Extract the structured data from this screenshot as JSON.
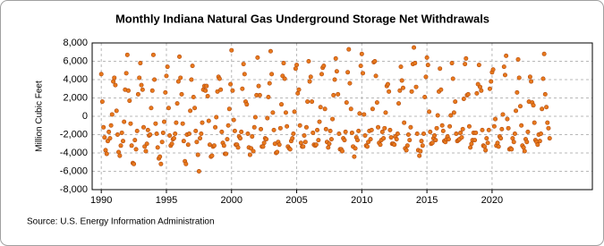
{
  "chart_data": {
    "type": "scatter",
    "title": "Monthly Indiana Natural Gas Underground Storage Net Withdrawals",
    "y_label": "Million Cubic Feet",
    "source": "Source: U.S. Energy Information Administration",
    "color": "#e8791c",
    "grid": true,
    "xlim": [
      1989.3,
      2027.7
    ],
    "xticks": [
      1990,
      1995,
      2000,
      2005,
      2010,
      2015,
      2020
    ],
    "ylim": [
      -8000,
      8000
    ],
    "yticks": [
      {
        "value": -8000,
        "label": "-8,000"
      },
      {
        "value": -6000,
        "label": "-6,000"
      },
      {
        "value": -4000,
        "label": "-4,000"
      },
      {
        "value": -2000,
        "label": "-2,000"
      },
      0,
      {
        "value": 2000,
        "label": "2,000"
      },
      {
        "value": 4000,
        "label": "4,000"
      },
      {
        "value": 6000,
        "label": "6,000"
      },
      {
        "value": 8000,
        "label": "8,000"
      }
    ],
    "x": [
      1990.0,
      1990.08,
      1990.17,
      1990.25,
      1990.33,
      1990.42,
      1990.5,
      1990.58,
      1990.67,
      1990.75,
      1990.83,
      1990.92,
      1991.0,
      1991.08,
      1991.17,
      1991.25,
      1991.33,
      1991.42,
      1991.5,
      1991.58,
      1991.67,
      1991.75,
      1991.83,
      1991.92,
      1992.0,
      1992.08,
      1992.17,
      1992.25,
      1992.33,
      1992.42,
      1992.5,
      1992.58,
      1992.67,
      1992.75,
      1992.83,
      1992.92,
      1993.0,
      1993.08,
      1993.17,
      1993.25,
      1993.33,
      1993.42,
      1993.5,
      1993.58,
      1993.67,
      1993.75,
      1993.83,
      1993.92,
      1994.0,
      1994.08,
      1994.17,
      1994.25,
      1994.33,
      1994.42,
      1994.5,
      1994.58,
      1994.67,
      1994.75,
      1994.83,
      1994.92,
      1995.0,
      1995.08,
      1995.17,
      1995.25,
      1995.33,
      1995.42,
      1995.5,
      1995.58,
      1995.67,
      1995.75,
      1995.83,
      1995.92,
      1996.0,
      1996.08,
      1996.17,
      1996.25,
      1996.33,
      1996.42,
      1996.5,
      1996.58,
      1996.67,
      1996.75,
      1996.83,
      1996.92,
      1997.0,
      1997.08,
      1997.17,
      1997.25,
      1997.33,
      1997.42,
      1997.5,
      1997.58,
      1997.67,
      1997.75,
      1997.83,
      1997.92,
      1998.0,
      1998.08,
      1998.17,
      1998.25,
      1998.33,
      1998.42,
      1998.5,
      1998.58,
      1998.67,
      1998.75,
      1998.83,
      1998.92,
      1999.0,
      1999.08,
      1999.17,
      1999.25,
      1999.33,
      1999.42,
      1999.5,
      1999.58,
      1999.67,
      1999.75,
      1999.83,
      1999.92,
      2000.0,
      2000.08,
      2000.17,
      2000.25,
      2000.33,
      2000.42,
      2000.5,
      2000.58,
      2000.67,
      2000.75,
      2000.83,
      2000.92,
      2001.0,
      2001.08,
      2001.17,
      2001.25,
      2001.33,
      2001.42,
      2001.5,
      2001.58,
      2001.67,
      2001.75,
      2001.83,
      2001.92,
      2002.0,
      2002.08,
      2002.17,
      2002.25,
      2002.33,
      2002.42,
      2002.5,
      2002.58,
      2002.67,
      2002.75,
      2002.83,
      2002.92,
      2003.0,
      2003.08,
      2003.17,
      2003.25,
      2003.33,
      2003.42,
      2003.5,
      2003.58,
      2003.67,
      2003.75,
      2003.83,
      2003.92,
      2004.0,
      2004.08,
      2004.17,
      2004.25,
      2004.33,
      2004.42,
      2004.5,
      2004.58,
      2004.67,
      2004.75,
      2004.83,
      2004.92,
      2005.0,
      2005.08,
      2005.17,
      2005.25,
      2005.33,
      2005.42,
      2005.5,
      2005.58,
      2005.67,
      2005.75,
      2005.83,
      2005.92,
      2006.0,
      2006.08,
      2006.17,
      2006.25,
      2006.33,
      2006.42,
      2006.5,
      2006.58,
      2006.67,
      2006.75,
      2006.83,
      2006.92,
      2007.0,
      2007.08,
      2007.17,
      2007.25,
      2007.33,
      2007.42,
      2007.5,
      2007.58,
      2007.67,
      2007.75,
      2007.83,
      2007.92,
      2008.0,
      2008.08,
      2008.17,
      2008.25,
      2008.33,
      2008.42,
      2008.5,
      2008.58,
      2008.67,
      2008.75,
      2008.83,
      2008.92,
      2009.0,
      2009.08,
      2009.17,
      2009.25,
      2009.33,
      2009.42,
      2009.5,
      2009.58,
      2009.67,
      2009.75,
      2009.83,
      2009.92,
      2010.0,
      2010.08,
      2010.17,
      2010.25,
      2010.33,
      2010.42,
      2010.5,
      2010.58,
      2010.67,
      2010.75,
      2010.83,
      2010.92,
      2011.0,
      2011.08,
      2011.17,
      2011.25,
      2011.33,
      2011.42,
      2011.5,
      2011.58,
      2011.67,
      2011.75,
      2011.83,
      2011.92,
      2012.0,
      2012.08,
      2012.17,
      2012.25,
      2012.33,
      2012.42,
      2012.5,
      2012.58,
      2012.67,
      2012.75,
      2012.83,
      2012.92,
      2013.0,
      2013.08,
      2013.17,
      2013.25,
      2013.33,
      2013.42,
      2013.5,
      2013.58,
      2013.67,
      2013.75,
      2013.83,
      2013.92,
      2014.0,
      2014.08,
      2014.17,
      2014.25,
      2014.33,
      2014.42,
      2014.5,
      2014.58,
      2014.67,
      2014.75,
      2014.83,
      2014.92,
      2015.0,
      2015.08,
      2015.17,
      2015.25,
      2015.33,
      2015.42,
      2015.5,
      2015.58,
      2015.67,
      2015.75,
      2015.83,
      2015.92,
      2016.0,
      2016.08,
      2016.17,
      2016.25,
      2016.33,
      2016.42,
      2016.5,
      2016.58,
      2016.67,
      2016.75,
      2016.83,
      2016.92,
      2017.0,
      2017.08,
      2017.17,
      2017.25,
      2017.33,
      2017.42,
      2017.5,
      2017.58,
      2017.67,
      2017.75,
      2017.83,
      2017.92,
      2018.0,
      2018.08,
      2018.17,
      2018.25,
      2018.33,
      2018.42,
      2018.5,
      2018.58,
      2018.67,
      2018.75,
      2018.83,
      2018.92,
      2019.0,
      2019.08,
      2019.17,
      2019.25,
      2019.33,
      2019.42,
      2019.5,
      2019.58,
      2019.67,
      2019.75,
      2019.83,
      2019.92,
      2020.0,
      2020.08,
      2020.17,
      2020.25,
      2020.33,
      2020.42,
      2020.5,
      2020.58,
      2020.67,
      2020.75,
      2020.83,
      2020.92,
      2021.0,
      2021.08,
      2021.17,
      2021.25,
      2021.33,
      2021.42,
      2021.5,
      2021.58,
      2021.67,
      2021.75,
      2021.83,
      2021.92,
      2022.0,
      2022.08,
      2022.17,
      2022.25,
      2022.33,
      2022.42,
      2022.5,
      2022.58,
      2022.67,
      2022.75,
      2022.83,
      2022.92,
      2023.0,
      2023.08,
      2023.17,
      2023.25,
      2023.33,
      2023.42,
      2023.5,
      2023.58,
      2023.67,
      2023.75,
      2023.83,
      2023.92,
      2024.0,
      2024.08,
      2024.17,
      2024.25,
      2024.33,
      2024.42
    ],
    "values": [
      4600,
      1600,
      -1200,
      -2300,
      -3700,
      -4100,
      -2700,
      -1700,
      -2400,
      -1000,
      200,
      3800,
      4200,
      3400,
      600,
      -2000,
      -3900,
      -4300,
      -3200,
      -1800,
      -2700,
      -600,
      2900,
      4700,
      6700,
      2800,
      1700,
      -800,
      -3200,
      -5100,
      -5200,
      -2600,
      -3600,
      -1600,
      2400,
      4200,
      5800,
      3400,
      2900,
      -1200,
      -3300,
      -3800,
      -3000,
      -1500,
      -2100,
      -2000,
      900,
      2800,
      6700,
      4000,
      -800,
      -1900,
      -3400,
      -4600,
      -4400,
      -5200,
      -2800,
      -1800,
      -600,
      2600,
      4400,
      5400,
      900,
      -2100,
      -3200,
      -3000,
      -2500,
      -2400,
      -1900,
      -700,
      1400,
      3800,
      6500,
      4200,
      2400,
      -800,
      -2700,
      -4900,
      -5200,
      -2000,
      -3100,
      -1900,
      600,
      4000,
      5500,
      2100,
      900,
      -1600,
      -2800,
      -4200,
      -6000,
      -2400,
      -1900,
      -700,
      2900,
      3300,
      2800,
      3300,
      2200,
      -500,
      -3100,
      -4400,
      -4300,
      -3300,
      -3200,
      -1200,
      -100,
      2700,
      4300,
      4100,
      2900,
      -1700,
      -2900,
      -3200,
      -4100,
      -4100,
      -2500,
      -1000,
      800,
      3500,
      7200,
      2800,
      -400,
      -1600,
      -3100,
      -3100,
      -3400,
      -2200,
      -2400,
      -1700,
      3000,
      5700,
      4600,
      1600,
      1300,
      -1900,
      -3400,
      -4200,
      -3500,
      -2200,
      -3800,
      -1200,
      -100,
      2300,
      6400,
      3300,
      2300,
      -1400,
      -3300,
      -3300,
      -2900,
      -2400,
      -2500,
      -200,
      2100,
      3600,
      7100,
      4600,
      400,
      -1500,
      -3000,
      -4000,
      -3900,
      -2800,
      -3100,
      -1300,
      1300,
      4400,
      5800,
      4100,
      400,
      -1100,
      -3300,
      -3500,
      -3600,
      -2700,
      -2400,
      -1900,
      500,
      5200,
      5600,
      2500,
      2900,
      -1000,
      -2900,
      -3300,
      -3300,
      -2100,
      -2800,
      -1200,
      1600,
      6000,
      3800,
      4300,
      1600,
      -1800,
      -3100,
      -3200,
      -3100,
      -1500,
      -2600,
      -600,
      1000,
      4600,
      5300,
      5500,
      800,
      -1400,
      -2800,
      -3400,
      -3000,
      -1600,
      -2500,
      -300,
      2300,
      4000,
      6300,
      4900,
      2400,
      -1900,
      -3600,
      -3600,
      -3800,
      -2400,
      -2600,
      -1700,
      1500,
      4800,
      7300,
      3600,
      800,
      -1800,
      -3300,
      -4400,
      -3500,
      -2300,
      -2600,
      -1600,
      300,
      5500,
      6800,
      4700,
      200,
      -2100,
      -3200,
      -3300,
      -2800,
      -1600,
      -2500,
      -1500,
      800,
      5900,
      6000,
      4400,
      1500,
      -1200,
      -2900,
      -3100,
      -2600,
      -1700,
      -2400,
      -1300,
      400,
      3300,
      3500,
      2700,
      -1500,
      -2300,
      -3000,
      -3000,
      -3100,
      -2200,
      -2500,
      -1900,
      1400,
      2800,
      5400,
      3900,
      3100,
      -700,
      -3500,
      -3700,
      -3200,
      -2000,
      -2600,
      -1200,
      2700,
      5700,
      7500,
      5800,
      3200,
      -1900,
      -3700,
      -4300,
      -3800,
      -2700,
      -3200,
      -1900,
      2100,
      4300,
      6400,
      5600,
      500,
      -1700,
      -3000,
      -2900,
      -2400,
      -2100,
      -2600,
      -1300,
      100,
      2700,
      5200,
      2900,
      -1000,
      -1600,
      -2700,
      -2800,
      -2500,
      -2200,
      -2500,
      -1100,
      100,
      5800,
      4100,
      400,
      1600,
      -1900,
      -2700,
      -2600,
      -2500,
      -1800,
      -2300,
      -1400,
      1900,
      5700,
      6300,
      2300,
      2400,
      -1100,
      -3400,
      -3000,
      -2600,
      -1800,
      -2600,
      -1800,
      2500,
      3500,
      5600,
      3200,
      2800,
      -1500,
      -3200,
      -3300,
      -3700,
      -2400,
      -2900,
      -1500,
      3000,
      3800,
      4800,
      5100,
      -1100,
      -300,
      -3200,
      -2900,
      -3300,
      -2200,
      -2400,
      -1400,
      200,
      5400,
      4500,
      6600,
      -300,
      -1300,
      -3600,
      -3500,
      -3600,
      -2400,
      -2800,
      -1900,
      600,
      2600,
      6200,
      4200,
      1100,
      -1000,
      -3200,
      -3400,
      -3800,
      -2500,
      -2800,
      -1700,
      1600,
      4300,
      3800,
      1500,
      1200,
      -700,
      -2600,
      -2800,
      -3100,
      -2000,
      -2700,
      -1900,
      800,
      4100,
      6800,
      2400,
      1000,
      -700,
      -1300,
      -2400
    ]
  }
}
